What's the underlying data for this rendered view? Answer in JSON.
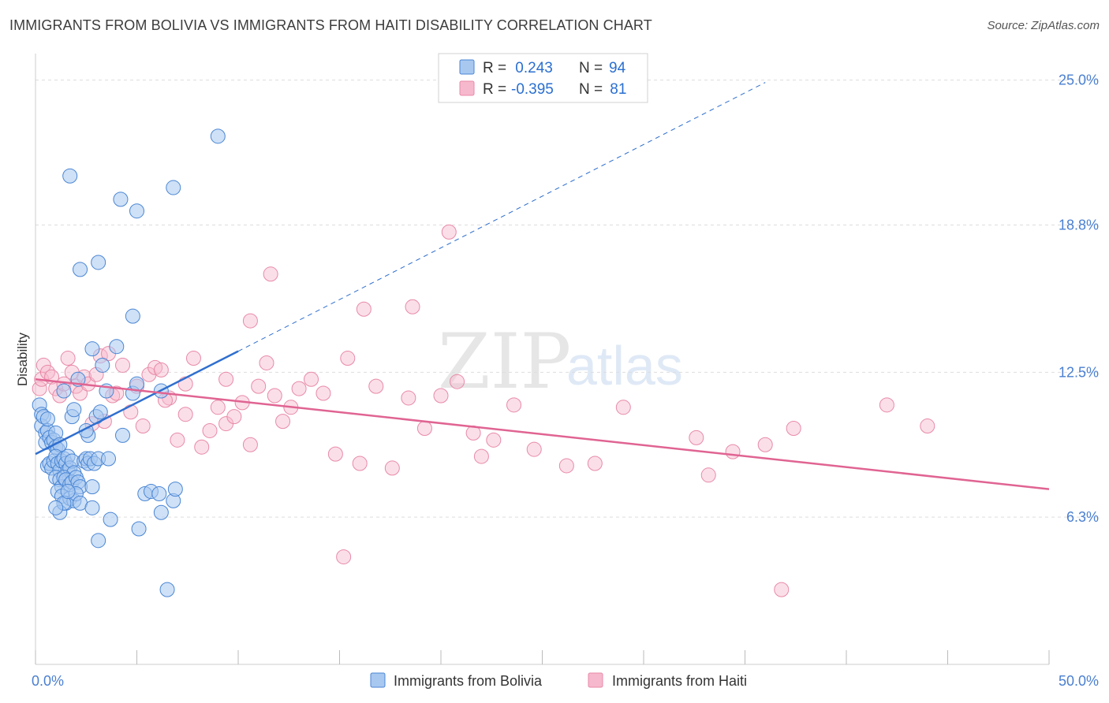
{
  "title": "IMMIGRANTS FROM BOLIVIA VS IMMIGRANTS FROM HAITI DISABILITY CORRELATION CHART",
  "source": "Source: ZipAtlas.com",
  "watermark": {
    "zip": "ZIP",
    "atlas": "atlas"
  },
  "colors": {
    "bolivia_fill": "#a8c8f0",
    "bolivia_stroke": "#4a86d4",
    "bolivia_line": "#2f6fcf",
    "haiti_fill": "#f6b8cc",
    "haiti_stroke": "#e88aa8",
    "haiti_line": "#e06492",
    "grid": "#dddddd",
    "tick_text": "#4a7fd0"
  },
  "legend": {
    "rows": [
      {
        "r_label": "R =",
        "r_value": " 0.243",
        "n_label": "N =",
        "n_value": "94"
      },
      {
        "r_label": "R =",
        "r_value": "-0.395",
        "n_label": "N =",
        "n_value": " 81"
      }
    ]
  },
  "chart_data": {
    "type": "scatter",
    "title": "IMMIGRANTS FROM BOLIVIA VS IMMIGRANTS FROM HAITI DISABILITY CORRELATION CHART",
    "xlabel": "",
    "ylabel": "Disability",
    "xlim": [
      0,
      50
    ],
    "ylim": [
      0,
      26
    ],
    "x_tick_labels": [
      {
        "value": 0,
        "label": "0.0%"
      },
      {
        "value": 50,
        "label": "50.0%"
      }
    ],
    "y_ticks": [
      {
        "value": 6.3,
        "label": "6.3%"
      },
      {
        "value": 12.5,
        "label": "12.5%"
      },
      {
        "value": 18.8,
        "label": "18.8%"
      },
      {
        "value": 25.0,
        "label": "25.0%"
      }
    ],
    "x_minor_ticks": [
      0,
      5,
      10,
      15,
      20,
      25,
      30,
      35,
      40,
      45,
      50
    ],
    "series": [
      {
        "name": "Immigrants from Bolivia",
        "R": 0.243,
        "N": 94,
        "trend": {
          "x0": 0,
          "y0": 9.0,
          "x1": 10,
          "y1": 13.4,
          "dash_to_x": 36,
          "dash_to_y": 24.9
        },
        "points": [
          [
            0.2,
            11.1
          ],
          [
            0.3,
            10.7
          ],
          [
            0.3,
            10.2
          ],
          [
            0.4,
            10.6
          ],
          [
            0.5,
            9.9
          ],
          [
            0.5,
            9.5
          ],
          [
            0.6,
            10.0
          ],
          [
            0.6,
            10.5
          ],
          [
            0.7,
            9.7
          ],
          [
            0.8,
            9.5
          ],
          [
            0.9,
            9.6
          ],
          [
            1.0,
            9.3
          ],
          [
            1.0,
            9.9
          ],
          [
            1.1,
            9.2
          ],
          [
            1.2,
            9.4
          ],
          [
            0.6,
            8.5
          ],
          [
            0.7,
            8.6
          ],
          [
            0.8,
            8.4
          ],
          [
            0.9,
            8.7
          ],
          [
            1.0,
            8.9
          ],
          [
            1.1,
            8.6
          ],
          [
            1.2,
            8.3
          ],
          [
            1.3,
            8.7
          ],
          [
            1.4,
            8.8
          ],
          [
            1.5,
            8.6
          ],
          [
            1.6,
            8.3
          ],
          [
            1.6,
            8.9
          ],
          [
            1.7,
            8.4
          ],
          [
            1.8,
            8.7
          ],
          [
            1.9,
            8.2
          ],
          [
            1.0,
            8.0
          ],
          [
            1.2,
            7.9
          ],
          [
            1.3,
            7.6
          ],
          [
            1.4,
            8.0
          ],
          [
            1.5,
            7.9
          ],
          [
            1.7,
            7.7
          ],
          [
            1.8,
            7.8
          ],
          [
            2.0,
            8.0
          ],
          [
            2.1,
            7.8
          ],
          [
            2.2,
            7.6
          ],
          [
            2.4,
            8.7
          ],
          [
            2.5,
            8.8
          ],
          [
            2.6,
            8.6
          ],
          [
            2.7,
            8.8
          ],
          [
            2.9,
            8.6
          ],
          [
            3.1,
            8.8
          ],
          [
            3.6,
            8.8
          ],
          [
            1.1,
            7.4
          ],
          [
            1.3,
            7.2
          ],
          [
            1.5,
            6.9
          ],
          [
            1.7,
            7.1
          ],
          [
            1.9,
            7.0
          ],
          [
            2.0,
            7.3
          ],
          [
            2.2,
            6.9
          ],
          [
            2.8,
            7.6
          ],
          [
            1.2,
            6.5
          ],
          [
            1.4,
            6.9
          ],
          [
            1.6,
            7.4
          ],
          [
            2.8,
            6.7
          ],
          [
            3.7,
            6.2
          ],
          [
            1.4,
            11.7
          ],
          [
            1.8,
            10.6
          ],
          [
            1.9,
            10.9
          ],
          [
            2.1,
            12.2
          ],
          [
            2.6,
            9.8
          ],
          [
            3.0,
            10.6
          ],
          [
            3.2,
            10.8
          ],
          [
            3.5,
            11.7
          ],
          [
            2.5,
            10.0
          ],
          [
            3.3,
            12.8
          ],
          [
            2.8,
            13.5
          ],
          [
            4.0,
            13.6
          ],
          [
            4.3,
            9.8
          ],
          [
            4.8,
            11.6
          ],
          [
            5.0,
            12.0
          ],
          [
            6.2,
            11.7
          ],
          [
            5.4,
            7.3
          ],
          [
            5.7,
            7.4
          ],
          [
            6.1,
            7.3
          ],
          [
            6.8,
            7.0
          ],
          [
            6.9,
            7.5
          ],
          [
            6.2,
            6.5
          ],
          [
            3.1,
            5.3
          ],
          [
            5.1,
            5.8
          ],
          [
            6.5,
            3.2
          ],
          [
            4.2,
            19.9
          ],
          [
            5.0,
            19.4
          ],
          [
            6.8,
            20.4
          ],
          [
            1.7,
            20.9
          ],
          [
            9.0,
            22.6
          ],
          [
            2.2,
            16.9
          ],
          [
            3.1,
            17.2
          ],
          [
            4.8,
            14.9
          ],
          [
            1.0,
            6.7
          ]
        ]
      },
      {
        "name": "Immigrants from Haiti",
        "R": -0.395,
        "N": 81,
        "trend": {
          "x0": 0,
          "y0": 12.2,
          "x1": 50,
          "y1": 7.5
        },
        "points": [
          [
            0.2,
            11.8
          ],
          [
            0.3,
            12.2
          ],
          [
            0.4,
            12.8
          ],
          [
            0.6,
            12.5
          ],
          [
            0.8,
            12.3
          ],
          [
            1.0,
            11.8
          ],
          [
            1.2,
            11.5
          ],
          [
            1.4,
            12.0
          ],
          [
            1.6,
            13.1
          ],
          [
            1.8,
            12.5
          ],
          [
            2.0,
            11.9
          ],
          [
            2.2,
            11.6
          ],
          [
            2.4,
            12.3
          ],
          [
            2.6,
            12.0
          ],
          [
            2.8,
            10.3
          ],
          [
            3.0,
            12.4
          ],
          [
            3.2,
            13.2
          ],
          [
            3.4,
            10.4
          ],
          [
            3.6,
            13.3
          ],
          [
            3.8,
            11.5
          ],
          [
            4.0,
            11.6
          ],
          [
            4.3,
            12.8
          ],
          [
            4.7,
            10.8
          ],
          [
            5.0,
            11.9
          ],
          [
            5.3,
            10.2
          ],
          [
            5.6,
            12.4
          ],
          [
            5.9,
            12.7
          ],
          [
            6.2,
            12.6
          ],
          [
            6.6,
            11.4
          ],
          [
            7.0,
            9.6
          ],
          [
            7.4,
            10.7
          ],
          [
            7.8,
            13.1
          ],
          [
            8.2,
            9.3
          ],
          [
            8.6,
            10.0
          ],
          [
            9.0,
            11.0
          ],
          [
            9.4,
            10.3
          ],
          [
            9.8,
            10.6
          ],
          [
            10.2,
            11.2
          ],
          [
            10.6,
            9.4
          ],
          [
            11.0,
            11.9
          ],
          [
            11.4,
            12.9
          ],
          [
            11.8,
            11.5
          ],
          [
            12.2,
            10.4
          ],
          [
            12.6,
            11.0
          ],
          [
            13.0,
            11.8
          ],
          [
            13.6,
            12.2
          ],
          [
            14.2,
            11.6
          ],
          [
            14.8,
            9.0
          ],
          [
            15.4,
            13.1
          ],
          [
            16.0,
            8.6
          ],
          [
            16.8,
            11.9
          ],
          [
            17.6,
            8.4
          ],
          [
            18.4,
            11.4
          ],
          [
            19.2,
            10.1
          ],
          [
            20.0,
            11.5
          ],
          [
            20.8,
            12.1
          ],
          [
            21.6,
            9.9
          ],
          [
            22.6,
            9.6
          ],
          [
            23.6,
            11.1
          ],
          [
            24.6,
            9.2
          ],
          [
            26.2,
            8.5
          ],
          [
            29.0,
            11.0
          ],
          [
            27.6,
            8.6
          ],
          [
            32.6,
            9.7
          ],
          [
            34.4,
            9.1
          ],
          [
            36.0,
            9.4
          ],
          [
            37.4,
            10.1
          ],
          [
            42.0,
            11.1
          ],
          [
            44.0,
            10.2
          ],
          [
            33.2,
            8.1
          ],
          [
            20.4,
            18.5
          ],
          [
            11.6,
            16.7
          ],
          [
            16.2,
            15.2
          ],
          [
            18.6,
            15.3
          ],
          [
            10.6,
            14.7
          ],
          [
            9.4,
            12.2
          ],
          [
            6.4,
            11.3
          ],
          [
            7.4,
            12.0
          ],
          [
            15.2,
            4.6
          ],
          [
            36.8,
            3.2
          ],
          [
            22.0,
            8.9
          ]
        ]
      }
    ]
  }
}
